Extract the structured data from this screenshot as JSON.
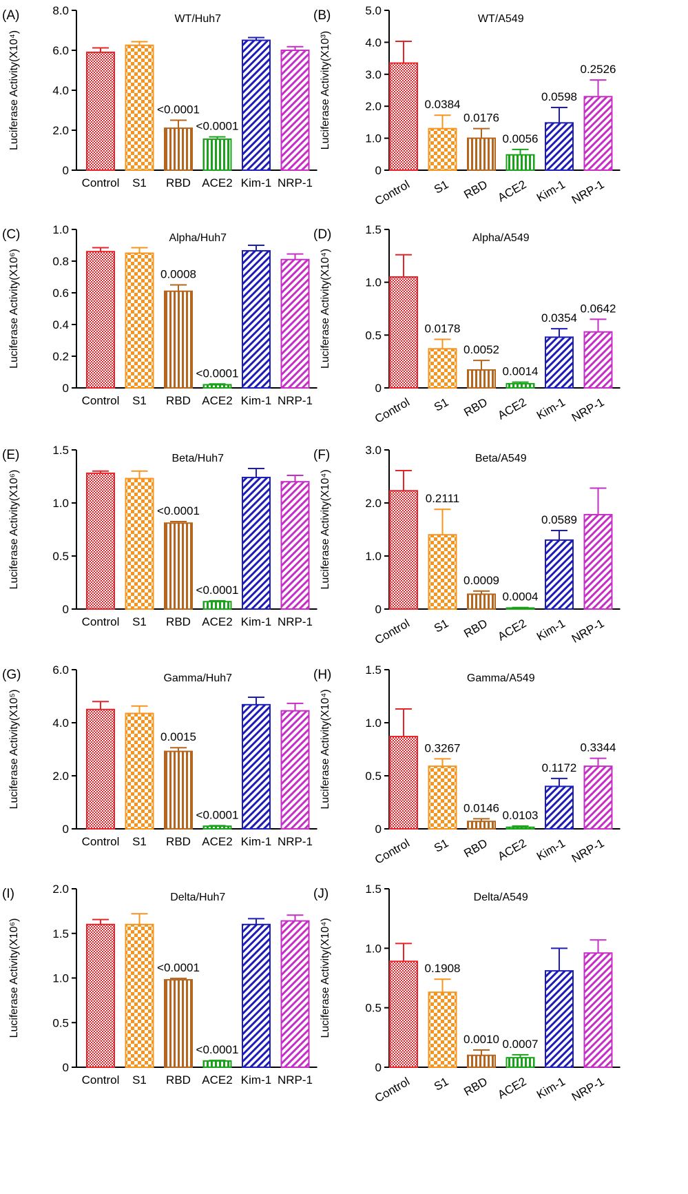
{
  "categories": [
    "Control",
    "S1",
    "RBD",
    "ACE2",
    "Kim-1",
    "NRP-1"
  ],
  "colors": [
    "#e8242b",
    "#f7941d",
    "#b5651d",
    "#1aa31a",
    "#1c1cb8",
    "#c62ec6"
  ],
  "patterns": [
    "dots",
    "checker",
    "vstripes",
    "vstripes",
    "diag",
    "diag"
  ],
  "chart_data": [
    {
      "type": "bar",
      "panel": "(A)",
      "title": "WT/Huh7",
      "ylabel": "Luciferase Activity(X10⁴)",
      "ylim": [
        0,
        8
      ],
      "ticks": [
        "0",
        "2.0",
        "4.0",
        "6.0",
        "8.0"
      ],
      "rotate": false,
      "values": [
        5.9,
        6.25,
        2.1,
        1.55,
        6.5,
        6.0
      ],
      "errors": [
        0.22,
        0.18,
        0.4,
        0.12,
        0.14,
        0.18
      ],
      "labels": [
        "",
        "",
        "<0.0001",
        "<0.0001",
        "",
        ""
      ]
    },
    {
      "type": "bar",
      "panel": "(B)",
      "title": "WT/A549",
      "ylabel": "Luciferase Activity(X10³)",
      "ylim": [
        0,
        5
      ],
      "ticks": [
        "0",
        "1.0",
        "2.0",
        "3.0",
        "4.0",
        "5.0"
      ],
      "rotate": true,
      "values": [
        3.35,
        1.3,
        1.0,
        0.48,
        1.48,
        2.3
      ],
      "errors": [
        0.68,
        0.42,
        0.3,
        0.17,
        0.48,
        0.52
      ],
      "labels": [
        "",
        "0.0384",
        "0.0176",
        "0.0056",
        "0.0598",
        "0.2526"
      ]
    },
    {
      "type": "bar",
      "panel": "(C)",
      "title": "Alpha/Huh7",
      "ylabel": "Luciferase Activity(X10⁶)",
      "ylim": [
        0,
        1
      ],
      "ticks": [
        "0",
        "0.2",
        "0.4",
        "0.6",
        "0.8",
        "1.0"
      ],
      "rotate": false,
      "values": [
        0.86,
        0.85,
        0.61,
        0.02,
        0.865,
        0.81
      ],
      "errors": [
        0.025,
        0.035,
        0.04,
        0.005,
        0.035,
        0.035
      ],
      "labels": [
        "",
        "",
        "0.0008",
        "<0.0001",
        "",
        ""
      ]
    },
    {
      "type": "bar",
      "panel": "(D)",
      "title": "Alpha/A549",
      "ylabel": "Luciferase Activity(X10⁴)",
      "ylim": [
        0,
        1.5
      ],
      "ticks": [
        "0",
        "0.5",
        "1.0",
        "1.5"
      ],
      "rotate": true,
      "values": [
        1.05,
        0.37,
        0.17,
        0.04,
        0.48,
        0.53
      ],
      "errors": [
        0.21,
        0.09,
        0.09,
        0.015,
        0.08,
        0.12
      ],
      "labels": [
        "",
        "0.0178",
        "0.0052",
        "0.0014",
        "0.0354",
        "0.0642"
      ]
    },
    {
      "type": "bar",
      "panel": "(E)",
      "title": "Beta/Huh7",
      "ylabel": "Luciferase Activity(X10⁶)",
      "ylim": [
        0,
        1.5
      ],
      "ticks": [
        "0",
        "0.5",
        "1.0",
        "1.5"
      ],
      "rotate": false,
      "values": [
        1.28,
        1.23,
        0.81,
        0.07,
        1.24,
        1.2
      ],
      "errors": [
        0.02,
        0.07,
        0.015,
        0.008,
        0.085,
        0.06
      ],
      "labels": [
        "",
        "",
        "<0.0001",
        "<0.0001",
        "",
        ""
      ]
    },
    {
      "type": "bar",
      "panel": "(F)",
      "title": "Beta/A549",
      "ylabel": "Luciferase Activity(X10⁴)",
      "ylim": [
        0,
        3
      ],
      "ticks": [
        "0",
        "1.0",
        "2.0",
        "3.0"
      ],
      "rotate": true,
      "values": [
        2.23,
        1.4,
        0.28,
        0.02,
        1.3,
        1.78
      ],
      "errors": [
        0.38,
        0.48,
        0.06,
        0.01,
        0.18,
        0.5
      ],
      "labels": [
        "",
        "0.2111",
        "0.0009",
        "0.0004",
        "0.0589",
        ""
      ]
    },
    {
      "type": "bar",
      "panel": "(G)",
      "title": "Gamma/Huh7",
      "ylabel": "Luciferase Activity(X10⁵)",
      "ylim": [
        0,
        6
      ],
      "ticks": [
        "0",
        "2.0",
        "4.0",
        "6.0"
      ],
      "rotate": false,
      "values": [
        4.5,
        4.35,
        2.92,
        0.1,
        4.68,
        4.45
      ],
      "errors": [
        0.3,
        0.28,
        0.14,
        0.02,
        0.28,
        0.28
      ],
      "labels": [
        "",
        "",
        "0.0015",
        "<0.0001",
        "",
        ""
      ]
    },
    {
      "type": "bar",
      "panel": "(H)",
      "title": "Gamma/A549",
      "ylabel": "Luciferase Activity(X10⁴)",
      "ylim": [
        0,
        1.5
      ],
      "ticks": [
        "0",
        "0.5",
        "1.0",
        "1.5"
      ],
      "rotate": true,
      "values": [
        0.87,
        0.59,
        0.07,
        0.015,
        0.4,
        0.59
      ],
      "errors": [
        0.26,
        0.07,
        0.025,
        0.012,
        0.075,
        0.075
      ],
      "labels": [
        "",
        "0.3267",
        "0.0146",
        "0.0103",
        "0.1172",
        "0.3344"
      ]
    },
    {
      "type": "bar",
      "panel": "(I)",
      "title": "Delta/Huh7",
      "ylabel": "Luciferase Activity(X10⁶)",
      "ylim": [
        0,
        2
      ],
      "ticks": [
        "0",
        "0.5",
        "1.0",
        "1.5",
        "2.0"
      ],
      "rotate": false,
      "values": [
        1.6,
        1.6,
        0.98,
        0.07,
        1.6,
        1.64
      ],
      "errors": [
        0.055,
        0.12,
        0.015,
        0.006,
        0.065,
        0.065
      ],
      "labels": [
        "",
        "",
        "<0.0001",
        "<0.0001",
        "",
        ""
      ]
    },
    {
      "type": "bar",
      "panel": "(J)",
      "title": "Delta/A549",
      "ylabel": "Luciferase Activity(X10⁴)",
      "ylim": [
        0,
        1.5
      ],
      "ticks": [
        "0",
        "0.5",
        "1.0",
        "1.5"
      ],
      "rotate": true,
      "values": [
        0.89,
        0.63,
        0.1,
        0.08,
        0.81,
        0.96
      ],
      "errors": [
        0.15,
        0.11,
        0.045,
        0.025,
        0.19,
        0.11
      ],
      "labels": [
        "",
        "0.1908",
        "0.0010",
        "0.0007",
        "",
        ""
      ]
    }
  ]
}
